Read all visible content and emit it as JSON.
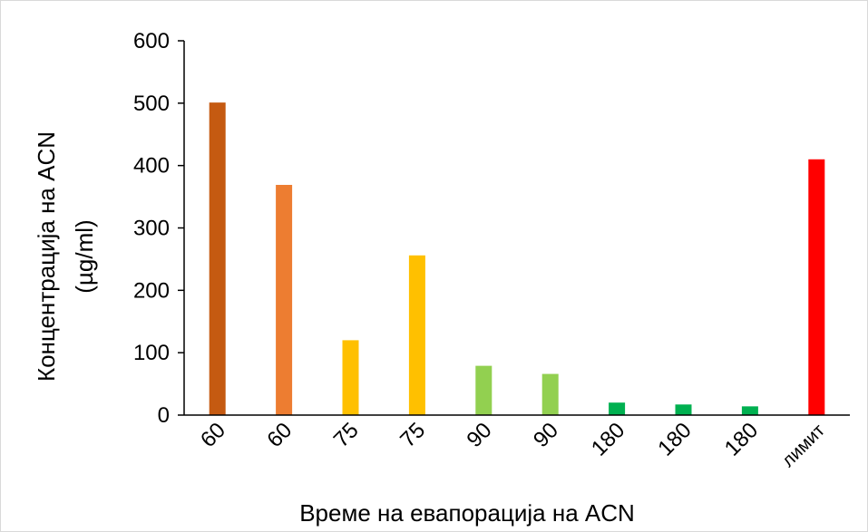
{
  "chart_data": {
    "type": "bar",
    "title": "",
    "xlabel": "Време на евапорација на ACN",
    "ylabel": "Концентрација на ACN",
    "ylabel_unit": "(µg/ml)",
    "categories": [
      "60",
      "60",
      "75",
      "75",
      "90",
      "90",
      "180",
      "180",
      "180",
      "лимит"
    ],
    "values": [
      501,
      369,
      120,
      256,
      79,
      66,
      20,
      17,
      14,
      410
    ],
    "colors": [
      "#c55a11",
      "#ed7d31",
      "#ffc000",
      "#ffc000",
      "#92d050",
      "#92d050",
      "#00b050",
      "#00b050",
      "#00b050",
      "#ff0000"
    ],
    "yticks": [
      "0",
      "100",
      "200",
      "300",
      "400",
      "500",
      "600"
    ],
    "ylim": [
      0,
      600
    ],
    "grid": false,
    "legend": "none"
  }
}
